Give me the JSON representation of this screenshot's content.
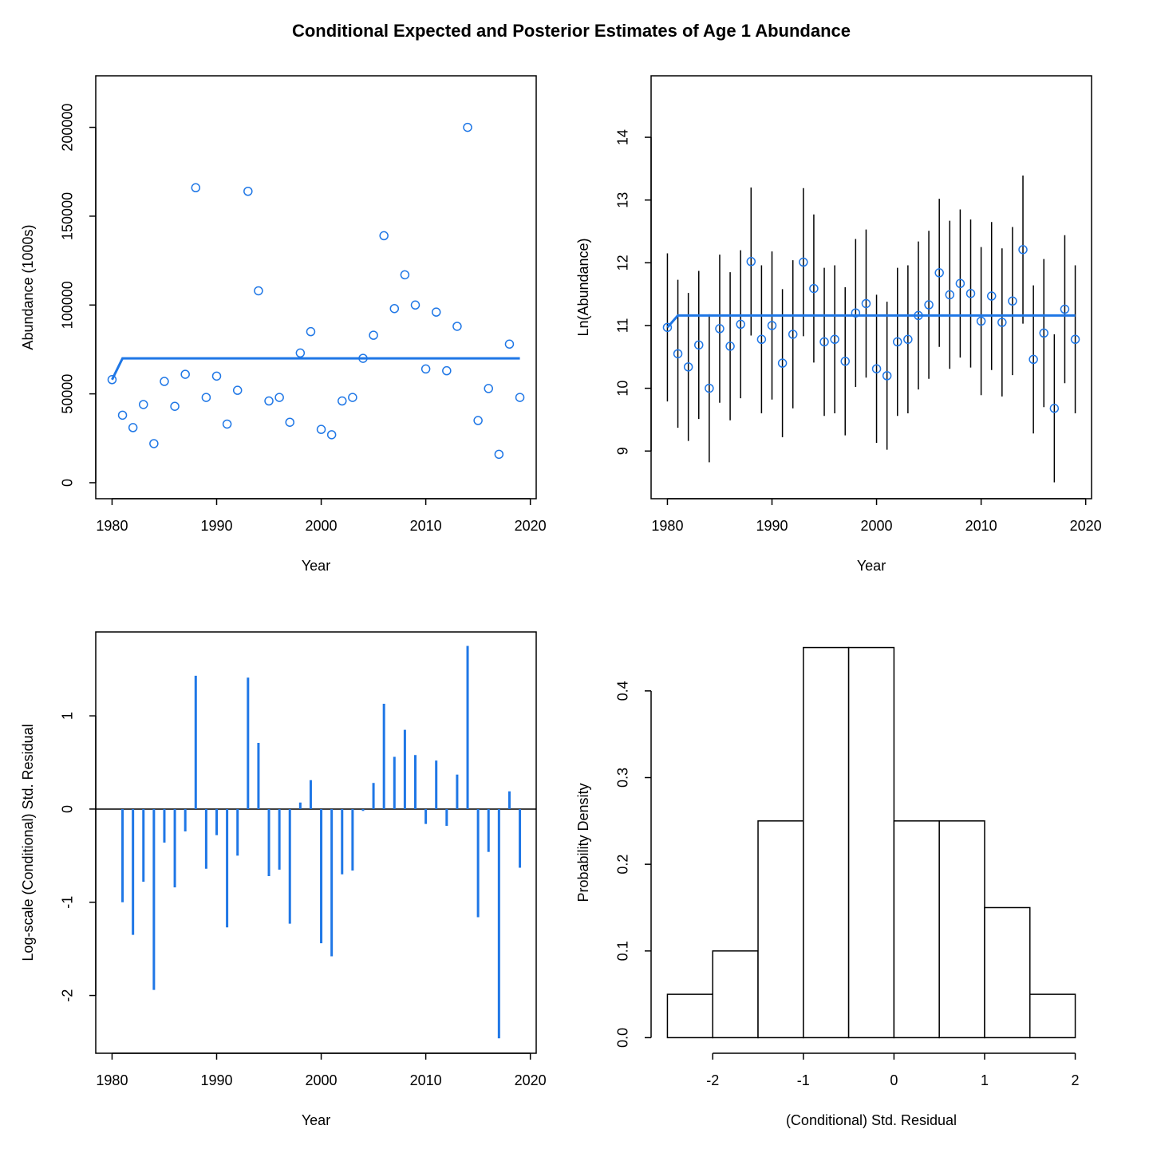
{
  "title": "Conditional Expected and Posterior Estimates of Age 1 Abundance",
  "chart_data": [
    {
      "type": "scatter",
      "xlabel": "Year",
      "ylabel": "Abundance (1000s)",
      "color": "#1f77e6",
      "box": true,
      "x": [
        1980,
        1981,
        1982,
        1983,
        1984,
        1985,
        1986,
        1987,
        1988,
        1989,
        1990,
        1991,
        1992,
        1993,
        1994,
        1995,
        1996,
        1997,
        1998,
        1999,
        2000,
        2001,
        2002,
        2003,
        2004,
        2005,
        2006,
        2007,
        2008,
        2009,
        2010,
        2011,
        2012,
        2013,
        2014,
        2015,
        2016,
        2017,
        2018,
        2019
      ],
      "values": [
        58000,
        38000,
        31000,
        44000,
        22000,
        57000,
        43000,
        61000,
        166000,
        48000,
        60000,
        33000,
        52000,
        164000,
        108000,
        46000,
        48000,
        34000,
        73000,
        85000,
        30000,
        27000,
        46000,
        48000,
        70000,
        83000,
        139000,
        98000,
        117000,
        100000,
        64000,
        96000,
        63000,
        88000,
        200000,
        35000,
        53000,
        16000,
        78000,
        48000
      ],
      "line": [
        58000,
        70000,
        70000,
        70000,
        70000,
        70000,
        70000,
        70000,
        70000,
        70000,
        70000,
        70000,
        70000,
        70000,
        70000,
        70000,
        70000,
        70000,
        70000,
        70000,
        70000,
        70000,
        70000,
        70000,
        70000,
        70000,
        70000,
        70000,
        70000,
        70000,
        70000,
        70000,
        70000,
        70000,
        70000,
        70000,
        70000,
        70000,
        70000,
        70000
      ],
      "xlim": [
        1978.44,
        2020.56
      ],
      "xticks": [
        1980,
        1990,
        2000,
        2010,
        2020
      ],
      "ylim": [
        -9000,
        229000
      ],
      "yticks": [
        0,
        50000,
        100000,
        150000,
        200000
      ]
    },
    {
      "type": "errorbar",
      "xlabel": "Year",
      "ylabel": "Ln(Abundance)",
      "color": "#1f77e6",
      "error_color": "#000000",
      "box": true,
      "x": [
        1980,
        1981,
        1982,
        1983,
        1984,
        1985,
        1986,
        1987,
        1988,
        1989,
        1990,
        1991,
        1992,
        1993,
        1994,
        1995,
        1996,
        1997,
        1998,
        1999,
        2000,
        2001,
        2002,
        2003,
        2004,
        2005,
        2006,
        2007,
        2008,
        2009,
        2010,
        2011,
        2012,
        2013,
        2014,
        2015,
        2016,
        2017,
        2018,
        2019
      ],
      "values": [
        10.97,
        10.55,
        10.34,
        10.69,
        10.0,
        10.95,
        10.67,
        11.02,
        12.02,
        10.78,
        11.0,
        10.4,
        10.86,
        12.01,
        11.59,
        10.74,
        10.78,
        10.43,
        11.2,
        11.35,
        10.31,
        10.2,
        10.74,
        10.78,
        11.16,
        11.33,
        11.84,
        11.49,
        11.67,
        11.51,
        11.07,
        11.47,
        11.05,
        11.39,
        12.21,
        10.46,
        10.88,
        9.68,
        11.26,
        10.78
      ],
      "lower": [
        9.79,
        9.37,
        9.16,
        9.51,
        8.82,
        9.77,
        9.49,
        9.84,
        10.84,
        9.6,
        9.82,
        9.22,
        9.68,
        10.83,
        10.41,
        9.56,
        9.6,
        9.25,
        10.02,
        10.17,
        9.13,
        9.02,
        9.56,
        9.6,
        9.98,
        10.15,
        10.66,
        10.31,
        10.49,
        10.33,
        9.89,
        10.29,
        9.87,
        10.21,
        11.03,
        9.28,
        9.7,
        8.5,
        10.08,
        9.6
      ],
      "upper": [
        12.15,
        11.73,
        11.52,
        11.87,
        11.18,
        12.13,
        11.85,
        12.2,
        13.2,
        11.96,
        12.18,
        11.58,
        12.04,
        13.19,
        12.77,
        11.92,
        11.96,
        11.61,
        12.38,
        12.53,
        11.49,
        11.38,
        11.92,
        11.96,
        12.34,
        12.51,
        13.02,
        12.67,
        12.85,
        12.69,
        12.25,
        12.65,
        12.23,
        12.57,
        13.39,
        11.64,
        12.06,
        10.86,
        12.44,
        11.96
      ],
      "line": [
        10.97,
        11.16,
        11.16,
        11.16,
        11.16,
        11.16,
        11.16,
        11.16,
        11.16,
        11.16,
        11.16,
        11.16,
        11.16,
        11.16,
        11.16,
        11.16,
        11.16,
        11.16,
        11.16,
        11.16,
        11.16,
        11.16,
        11.16,
        11.16,
        11.16,
        11.16,
        11.16,
        11.16,
        11.16,
        11.16,
        11.16,
        11.16,
        11.16,
        11.16,
        11.16,
        11.16,
        11.16,
        11.16,
        11.16,
        11.16
      ],
      "xlim": [
        1978.44,
        2020.56
      ],
      "xticks": [
        1980,
        1990,
        2000,
        2010,
        2020
      ],
      "ylim": [
        8.24,
        14.98
      ],
      "yticks": [
        9,
        10,
        11,
        12,
        13,
        14
      ]
    },
    {
      "type": "spike",
      "xlabel": "Year",
      "ylabel": "Log-scale (Conditional) Std. Residual",
      "color": "#1f77e6",
      "box": true,
      "x": [
        1980,
        1981,
        1982,
        1983,
        1984,
        1985,
        1986,
        1987,
        1988,
        1989,
        1990,
        1991,
        1992,
        1993,
        1994,
        1995,
        1996,
        1997,
        1998,
        1999,
        2000,
        2001,
        2002,
        2003,
        2004,
        2005,
        2006,
        2007,
        2008,
        2009,
        2010,
        2011,
        2012,
        2013,
        2014,
        2015,
        2016,
        2017,
        2018,
        2019
      ],
      "values": [
        0,
        -1.0,
        -1.35,
        -0.78,
        -1.94,
        -0.36,
        -0.84,
        -0.24,
        1.43,
        -0.64,
        -0.28,
        -1.27,
        -0.5,
        1.41,
        0.71,
        -0.72,
        -0.65,
        -1.23,
        0.07,
        0.31,
        -1.44,
        -1.58,
        -0.7,
        -0.66,
        -0.02,
        0.28,
        1.13,
        0.56,
        0.85,
        0.58,
        -0.16,
        0.52,
        -0.18,
        0.37,
        1.75,
        -1.16,
        -0.46,
        -2.46,
        0.19,
        -0.63
      ],
      "xlim": [
        1978.44,
        2020.56
      ],
      "xticks": [
        1980,
        1990,
        2000,
        2010,
        2020
      ],
      "ylim": [
        -2.62,
        1.9
      ],
      "yticks": [
        -2,
        -1,
        0,
        1
      ]
    },
    {
      "type": "histogram",
      "xlabel": "(Conditional) Std. Residual",
      "ylabel": "Probability Density",
      "box": false,
      "bins": [
        -2.5,
        -2,
        -1.5,
        -1,
        -0.5,
        0,
        0.5,
        1,
        1.5,
        2
      ],
      "values": [
        0.05,
        0.1,
        0.25,
        0.45,
        0.45,
        0.25,
        0.25,
        0.15,
        0.05
      ],
      "xlim": [
        -2.68,
        2.18
      ],
      "xticks": [
        -2,
        -1,
        0,
        1,
        2
      ],
      "ylim": [
        -0.018,
        0.468
      ],
      "yticks": [
        {
          "value": 0,
          "label": "0.0"
        },
        0.1,
        0.2,
        0.3,
        0.4
      ]
    }
  ]
}
